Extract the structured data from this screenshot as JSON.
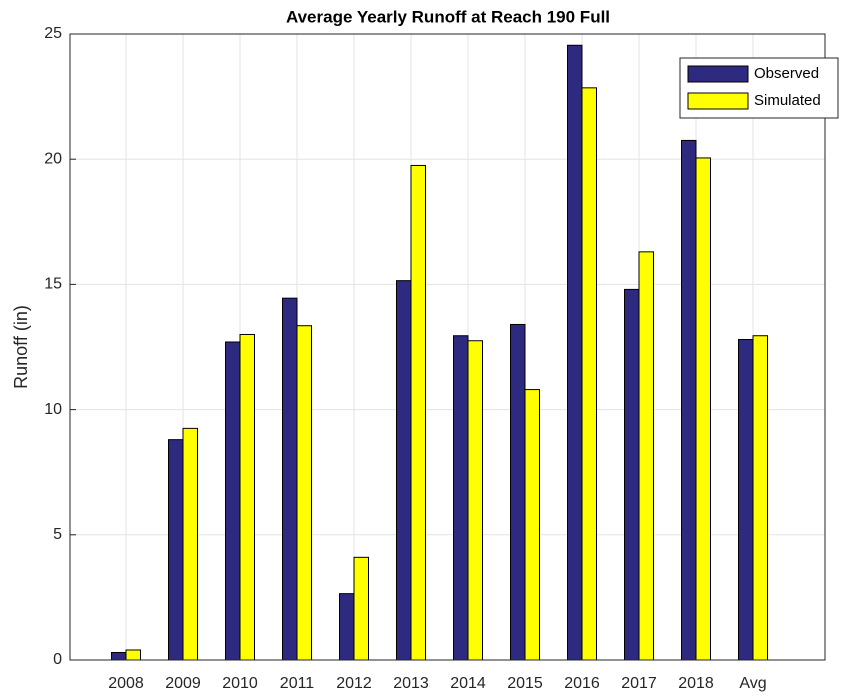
{
  "chart_data": {
    "type": "bar",
    "title": "Average Yearly Runoff at Reach 190 Full",
    "y_label": "Runoff (in)",
    "categories": [
      "2008",
      "2009",
      "2010",
      "2011",
      "2012",
      "2013",
      "2014",
      "2015",
      "2016",
      "2017",
      "2018",
      "Avg"
    ],
    "series": [
      {
        "name": "Observed",
        "color": "#2e2a7f",
        "values": [
          0.3,
          8.8,
          12.7,
          14.45,
          2.65,
          15.15,
          12.95,
          13.4,
          24.55,
          14.8,
          20.75,
          12.8
        ]
      },
      {
        "name": "Simulated",
        "color": "#ffff00",
        "values": [
          0.4,
          9.25,
          13.0,
          13.35,
          4.1,
          19.75,
          12.75,
          10.8,
          22.85,
          16.3,
          20.05,
          12.95
        ]
      }
    ],
    "ylim": [
      0,
      25
    ],
    "yticks": [
      0,
      5,
      10,
      15,
      20,
      25
    ],
    "grid": true,
    "legend": "northeast"
  }
}
